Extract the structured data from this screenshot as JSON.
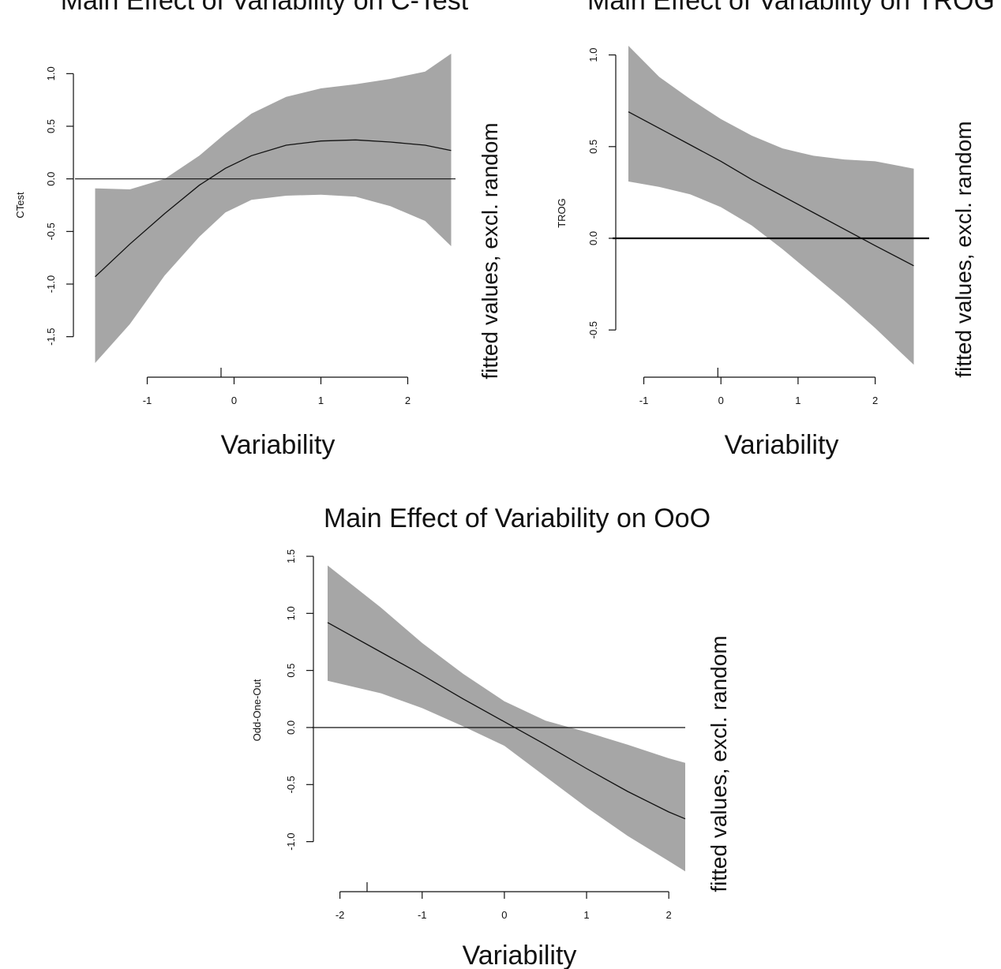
{
  "chart_data": [
    {
      "type": "line",
      "title": "Main Effect of Variability on C-Test",
      "xlabel": "Variability",
      "ylabel": "CTest",
      "right_label": "fitted values, excl. random",
      "xlim": [
        -1.65,
        2.55
      ],
      "ylim": [
        -1.75,
        1.25
      ],
      "x_ticks": [
        "-1",
        "0",
        "1",
        "2"
      ],
      "x_tick_values": [
        -1,
        0,
        1,
        2
      ],
      "y_ticks": [
        "-1.5",
        "-1.0",
        "-0.5",
        "0.0",
        "0.5",
        "1.0"
      ],
      "y_tick_values": [
        -1.5,
        -1.0,
        -0.5,
        0.0,
        0.5,
        1.0
      ],
      "reference_line_y": 0,
      "rug_x": [
        -0.15
      ],
      "series": [
        {
          "x": [
            -1.6,
            -1.2,
            -0.8,
            -0.4,
            -0.1,
            0.2,
            0.6,
            1.0,
            1.4,
            1.8,
            2.2,
            2.5
          ],
          "fit": [
            -0.93,
            -0.62,
            -0.33,
            -0.06,
            0.1,
            0.22,
            0.32,
            0.36,
            0.37,
            0.35,
            0.32,
            0.27
          ],
          "lower": [
            -1.75,
            -1.38,
            -0.92,
            -0.55,
            -0.32,
            -0.2,
            -0.16,
            -0.15,
            -0.17,
            -0.26,
            -0.4,
            -0.64
          ],
          "upper": [
            -0.09,
            -0.1,
            0.0,
            0.22,
            0.43,
            0.62,
            0.78,
            0.86,
            0.9,
            0.95,
            1.02,
            1.19
          ]
        }
      ]
    },
    {
      "type": "line",
      "title": "Main Effect of Variability on TROG",
      "xlabel": "Variability",
      "ylabel": "TROG",
      "right_label": "fitted values, excl. random",
      "xlim": [
        -1.2,
        2.7
      ],
      "ylim": [
        -0.68,
        1.05
      ],
      "x_ticks": [
        "-1",
        "0",
        "1",
        "2"
      ],
      "x_tick_values": [
        -1,
        0,
        1,
        2
      ],
      "y_ticks": [
        "-0.5",
        "0.0",
        "0.5",
        "1.0"
      ],
      "y_tick_values": [
        -0.5,
        0.0,
        0.5,
        1.0
      ],
      "reference_line_y": 0,
      "rug_x": [
        -0.04
      ],
      "series": [
        {
          "x": [
            -1.2,
            -0.8,
            -0.4,
            0.0,
            0.4,
            0.8,
            1.2,
            1.6,
            2.0,
            2.5
          ],
          "fit": [
            0.69,
            0.6,
            0.51,
            0.42,
            0.32,
            0.23,
            0.14,
            0.05,
            -0.04,
            -0.15
          ],
          "lower": [
            0.31,
            0.28,
            0.24,
            0.17,
            0.07,
            -0.06,
            -0.2,
            -0.34,
            -0.49,
            -0.69
          ],
          "upper": [
            1.05,
            0.88,
            0.76,
            0.65,
            0.56,
            0.49,
            0.45,
            0.43,
            0.42,
            0.38
          ]
        }
      ]
    },
    {
      "type": "line",
      "title": "Main Effect of Variability on OoO",
      "xlabel": "Variability",
      "ylabel": "Odd-One-Out",
      "right_label": "fitted values, excl. random",
      "xlim": [
        -2.15,
        2.2
      ],
      "ylim": [
        -1.3,
        1.5
      ],
      "x_ticks": [
        "-2",
        "-1",
        "0",
        "1",
        "2"
      ],
      "x_tick_values": [
        -2,
        -1,
        0,
        1,
        2
      ],
      "y_ticks": [
        "-1.0",
        "-0.5",
        "0.0",
        "0.5",
        "1.0",
        "1.5"
      ],
      "y_tick_values": [
        -1.0,
        -0.5,
        0.0,
        0.5,
        1.0,
        1.5
      ],
      "reference_line_y": 0,
      "rug_x": [
        -1.67
      ],
      "series": [
        {
          "x": [
            -2.15,
            -1.5,
            -1.0,
            -0.5,
            0.0,
            0.5,
            1.0,
            1.5,
            2.0,
            2.2
          ],
          "fit": [
            0.92,
            0.66,
            0.46,
            0.25,
            0.05,
            -0.15,
            -0.36,
            -0.56,
            -0.74,
            -0.8
          ],
          "lower": [
            0.41,
            0.3,
            0.17,
            0.01,
            -0.16,
            -0.43,
            -0.7,
            -0.95,
            -1.17,
            -1.26
          ],
          "upper": [
            1.42,
            1.05,
            0.74,
            0.47,
            0.23,
            0.06,
            -0.04,
            -0.15,
            -0.27,
            -0.31
          ]
        }
      ]
    }
  ]
}
